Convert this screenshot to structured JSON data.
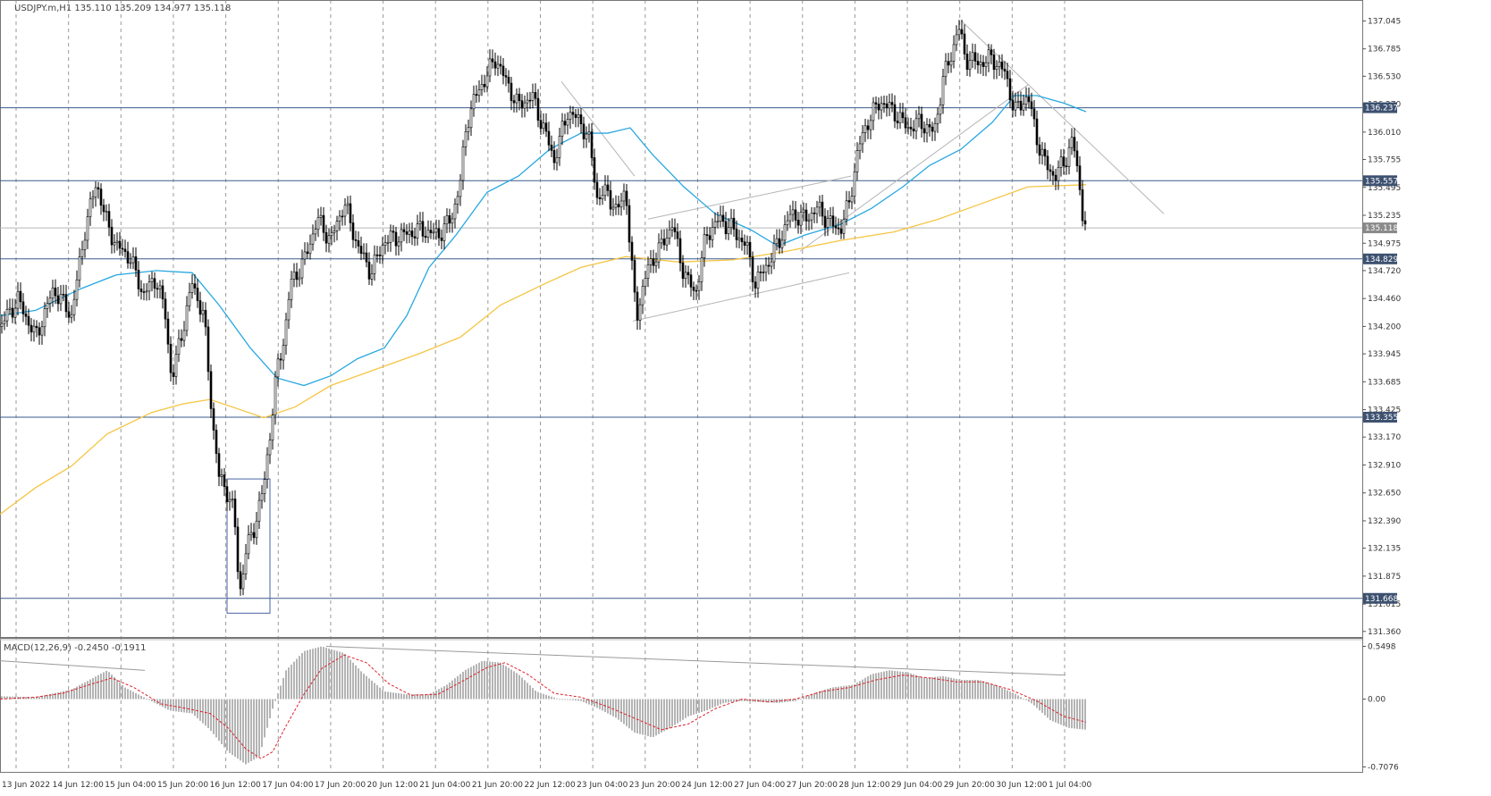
{
  "title": "USDJPY.m,H1  135.110 135.209 134.977 135.118",
  "chart_data": {
    "type": "line",
    "symbol": "USDJPY.m",
    "timeframe": "H1",
    "ohlc": {
      "open": 135.11,
      "high": 135.209,
      "low": 134.977,
      "close": 135.118
    },
    "price_axis": {
      "ticks": [
        "137.045",
        "136.785",
        "136.530",
        "136.270",
        "136.010",
        "135.755",
        "135.495",
        "135.235",
        "134.975",
        "134.720",
        "134.460",
        "134.200",
        "133.945",
        "133.685",
        "133.425",
        "133.170",
        "132.910",
        "132.650",
        "132.390",
        "132.135",
        "131.875",
        "131.615",
        "131.360"
      ],
      "range": [
        131.3,
        137.24
      ]
    },
    "time_axis": [
      "13 Jun 2022",
      "14 Jun 12:00",
      "15 Jun 04:00",
      "15 Jun 20:00",
      "16 Jun 12:00",
      "17 Jun 04:00",
      "17 Jun 20:00",
      "20 Jun 12:00",
      "21 Jun 04:00",
      "21 Jun 20:00",
      "22 Jun 12:00",
      "23 Jun 04:00",
      "23 Jun 20:00",
      "24 Jun 12:00",
      "27 Jun 04:00",
      "27 Jun 20:00",
      "28 Jun 12:00",
      "29 Jun 04:00",
      "29 Jun 20:00",
      "30 Jun 12:00",
      "1 Jul 04:00"
    ],
    "level_tags": [
      {
        "label": "136.237",
        "value": 136.237
      },
      {
        "label": "135.557",
        "value": 135.557
      },
      {
        "label": "135.118",
        "value": 135.118
      },
      {
        "label": "134.829",
        "value": 134.829
      },
      {
        "label": "133.355",
        "value": 133.355
      },
      {
        "label": "131.668",
        "value": 131.668
      }
    ],
    "series": [
      {
        "kind": "ma_fast",
        "color": "#29a8e0",
        "points": [
          [
            0,
            134.3
          ],
          [
            40,
            134.35
          ],
          [
            90,
            134.55
          ],
          [
            130,
            134.68
          ],
          [
            175,
            134.72
          ],
          [
            215,
            134.7
          ],
          [
            245,
            134.4
          ],
          [
            280,
            134.0
          ],
          [
            310,
            133.72
          ],
          [
            340,
            133.65
          ],
          [
            370,
            133.74
          ],
          [
            400,
            133.9
          ],
          [
            430,
            134.0
          ],
          [
            455,
            134.3
          ],
          [
            480,
            134.75
          ],
          [
            510,
            135.05
          ],
          [
            545,
            135.45
          ],
          [
            580,
            135.6
          ],
          [
            615,
            135.85
          ],
          [
            650,
            136.0
          ],
          [
            680,
            136.0
          ],
          [
            705,
            136.05
          ],
          [
            730,
            135.8
          ],
          [
            765,
            135.5
          ],
          [
            800,
            135.25
          ],
          [
            840,
            135.1
          ],
          [
            870,
            134.95
          ],
          [
            900,
            135.05
          ],
          [
            940,
            135.15
          ],
          [
            975,
            135.3
          ],
          [
            1010,
            135.5
          ],
          [
            1040,
            135.7
          ],
          [
            1075,
            135.85
          ],
          [
            1110,
            136.1
          ],
          [
            1135,
            136.35
          ],
          [
            1160,
            136.35
          ],
          [
            1190,
            136.28
          ],
          [
            1215,
            136.2
          ]
        ]
      },
      {
        "kind": "ma_slow",
        "color": "#f5c542",
        "points": [
          [
            0,
            132.45
          ],
          [
            40,
            132.7
          ],
          [
            80,
            132.9
          ],
          [
            120,
            133.2
          ],
          [
            170,
            133.4
          ],
          [
            205,
            133.48
          ],
          [
            235,
            133.52
          ],
          [
            260,
            133.45
          ],
          [
            295,
            133.35
          ],
          [
            330,
            133.45
          ],
          [
            370,
            133.65
          ],
          [
            420,
            133.8
          ],
          [
            470,
            133.95
          ],
          [
            515,
            134.1
          ],
          [
            560,
            134.4
          ],
          [
            610,
            134.6
          ],
          [
            650,
            134.75
          ],
          [
            700,
            134.85
          ],
          [
            760,
            134.8
          ],
          [
            820,
            134.82
          ],
          [
            880,
            134.9
          ],
          [
            940,
            135.0
          ],
          [
            1000,
            135.08
          ],
          [
            1050,
            135.2
          ],
          [
            1100,
            135.35
          ],
          [
            1150,
            135.5
          ],
          [
            1215,
            135.52
          ]
        ]
      },
      {
        "kind": "price",
        "color": "#000000",
        "points": [
          [
            0,
            134.2
          ],
          [
            20,
            134.45
          ],
          [
            40,
            134.1
          ],
          [
            60,
            134.55
          ],
          [
            80,
            134.3
          ],
          [
            95,
            135.1
          ],
          [
            108,
            135.55
          ],
          [
            118,
            135.2
          ],
          [
            130,
            134.95
          ],
          [
            145,
            134.85
          ],
          [
            160,
            134.5
          ],
          [
            175,
            134.65
          ],
          [
            185,
            134.3
          ],
          [
            192,
            133.7
          ],
          [
            205,
            134.2
          ],
          [
            215,
            134.6
          ],
          [
            228,
            134.3
          ],
          [
            238,
            133.3
          ],
          [
            245,
            132.8
          ],
          [
            255,
            132.65
          ],
          [
            262,
            132.45
          ],
          [
            268,
            131.7
          ],
          [
            275,
            132.1
          ],
          [
            285,
            132.35
          ],
          [
            295,
            132.7
          ],
          [
            302,
            133.2
          ],
          [
            310,
            133.8
          ],
          [
            318,
            134.1
          ],
          [
            325,
            134.6
          ],
          [
            340,
            134.8
          ],
          [
            355,
            135.2
          ],
          [
            370,
            135.0
          ],
          [
            385,
            135.35
          ],
          [
            400,
            134.95
          ],
          [
            415,
            134.7
          ],
          [
            430,
            135.0
          ],
          [
            450,
            135.05
          ],
          [
            470,
            135.1
          ],
          [
            490,
            135.05
          ],
          [
            505,
            135.2
          ],
          [
            515,
            135.55
          ],
          [
            522,
            136.1
          ],
          [
            530,
            136.3
          ],
          [
            545,
            136.55
          ],
          [
            555,
            136.7
          ],
          [
            565,
            136.5
          ],
          [
            580,
            136.25
          ],
          [
            595,
            136.35
          ],
          [
            610,
            136.0
          ],
          [
            620,
            135.75
          ],
          [
            635,
            136.2
          ],
          [
            650,
            136.1
          ],
          [
            660,
            135.9
          ],
          [
            668,
            135.4
          ],
          [
            680,
            135.45
          ],
          [
            690,
            135.25
          ],
          [
            700,
            135.5
          ],
          [
            705,
            134.9
          ],
          [
            712,
            134.3
          ],
          [
            725,
            134.75
          ],
          [
            740,
            134.95
          ],
          [
            752,
            135.15
          ],
          [
            765,
            134.7
          ],
          [
            778,
            134.5
          ],
          [
            790,
            135.05
          ],
          [
            805,
            135.2
          ],
          [
            820,
            135.1
          ],
          [
            835,
            134.95
          ],
          [
            845,
            134.6
          ],
          [
            860,
            134.8
          ],
          [
            872,
            135.0
          ],
          [
            885,
            135.25
          ],
          [
            900,
            135.2
          ],
          [
            915,
            135.3
          ],
          [
            930,
            135.15
          ],
          [
            940,
            135.1
          ],
          [
            950,
            135.35
          ],
          [
            960,
            135.85
          ],
          [
            970,
            136.1
          ],
          [
            985,
            136.3
          ],
          [
            1000,
            136.2
          ],
          [
            1015,
            136.05
          ],
          [
            1030,
            136.1
          ],
          [
            1045,
            136.0
          ],
          [
            1055,
            136.5
          ],
          [
            1065,
            136.75
          ],
          [
            1072,
            137.0
          ],
          [
            1080,
            136.7
          ],
          [
            1095,
            136.65
          ],
          [
            1110,
            136.7
          ],
          [
            1125,
            136.55
          ],
          [
            1135,
            136.2
          ],
          [
            1150,
            136.35
          ],
          [
            1160,
            135.95
          ],
          [
            1170,
            135.7
          ],
          [
            1180,
            135.6
          ],
          [
            1192,
            135.75
          ],
          [
            1200,
            135.95
          ],
          [
            1207,
            135.55
          ],
          [
            1212,
            135.2
          ],
          [
            1216,
            135.1
          ]
        ]
      }
    ],
    "macd": {
      "label": "MACD(12,26,9) -0.2450 -0.1911",
      "ticks": [
        "0.5498",
        "0.00",
        "-0.7076"
      ],
      "range": [
        -0.75,
        0.62
      ],
      "histogram": [
        [
          0,
          0.03
        ],
        [
          40,
          0.02
        ],
        [
          80,
          0.1
        ],
        [
          100,
          0.2
        ],
        [
          120,
          0.3
        ],
        [
          140,
          0.12
        ],
        [
          165,
          0.0
        ],
        [
          190,
          -0.12
        ],
        [
          215,
          -0.15
        ],
        [
          235,
          -0.32
        ],
        [
          255,
          -0.55
        ],
        [
          275,
          -0.68
        ],
        [
          290,
          -0.6
        ],
        [
          305,
          -0.1
        ],
        [
          320,
          0.3
        ],
        [
          340,
          0.5
        ],
        [
          360,
          0.55
        ],
        [
          385,
          0.48
        ],
        [
          405,
          0.28
        ],
        [
          430,
          0.08
        ],
        [
          455,
          0.05
        ],
        [
          480,
          0.05
        ],
        [
          500,
          0.15
        ],
        [
          520,
          0.3
        ],
        [
          540,
          0.4
        ],
        [
          560,
          0.38
        ],
        [
          580,
          0.26
        ],
        [
          600,
          0.08
        ],
        [
          625,
          0.0
        ],
        [
          650,
          -0.02
        ],
        [
          670,
          -0.1
        ],
        [
          690,
          -0.2
        ],
        [
          710,
          -0.35
        ],
        [
          730,
          -0.4
        ],
        [
          750,
          -0.3
        ],
        [
          770,
          -0.18
        ],
        [
          790,
          -0.12
        ],
        [
          810,
          -0.04
        ],
        [
          830,
          -0.02
        ],
        [
          850,
          -0.03
        ],
        [
          870,
          -0.04
        ],
        [
          890,
          -0.02
        ],
        [
          910,
          0.06
        ],
        [
          930,
          0.12
        ],
        [
          955,
          0.15
        ],
        [
          975,
          0.26
        ],
        [
          995,
          0.3
        ],
        [
          1015,
          0.28
        ],
        [
          1035,
          0.22
        ],
        [
          1055,
          0.24
        ],
        [
          1075,
          0.2
        ],
        [
          1095,
          0.2
        ],
        [
          1115,
          0.14
        ],
        [
          1135,
          0.06
        ],
        [
          1155,
          -0.05
        ],
        [
          1175,
          -0.22
        ],
        [
          1195,
          -0.3
        ],
        [
          1215,
          -0.32
        ]
      ],
      "signal": [
        [
          0,
          0.0
        ],
        [
          40,
          0.02
        ],
        [
          70,
          0.06
        ],
        [
          100,
          0.15
        ],
        [
          125,
          0.22
        ],
        [
          150,
          0.12
        ],
        [
          180,
          -0.05
        ],
        [
          210,
          -0.1
        ],
        [
          235,
          -0.15
        ],
        [
          255,
          -0.3
        ],
        [
          275,
          -0.52
        ],
        [
          292,
          -0.62
        ],
        [
          305,
          -0.55
        ],
        [
          320,
          -0.28
        ],
        [
          340,
          0.05
        ],
        [
          360,
          0.32
        ],
        [
          385,
          0.46
        ],
        [
          410,
          0.38
        ],
        [
          435,
          0.16
        ],
        [
          460,
          0.04
        ],
        [
          490,
          0.05
        ],
        [
          520,
          0.2
        ],
        [
          545,
          0.33
        ],
        [
          565,
          0.38
        ],
        [
          590,
          0.26
        ],
        [
          620,
          0.06
        ],
        [
          650,
          0.02
        ],
        [
          680,
          -0.08
        ],
        [
          710,
          -0.2
        ],
        [
          740,
          -0.32
        ],
        [
          770,
          -0.26
        ],
        [
          800,
          -0.1
        ],
        [
          830,
          0.0
        ],
        [
          860,
          -0.03
        ],
        [
          890,
          0.0
        ],
        [
          920,
          0.08
        ],
        [
          950,
          0.12
        ],
        [
          980,
          0.2
        ],
        [
          1010,
          0.25
        ],
        [
          1040,
          0.22
        ],
        [
          1070,
          0.18
        ],
        [
          1100,
          0.18
        ],
        [
          1130,
          0.1
        ],
        [
          1160,
          -0.02
        ],
        [
          1190,
          -0.18
        ],
        [
          1215,
          -0.24
        ]
      ]
    }
  }
}
